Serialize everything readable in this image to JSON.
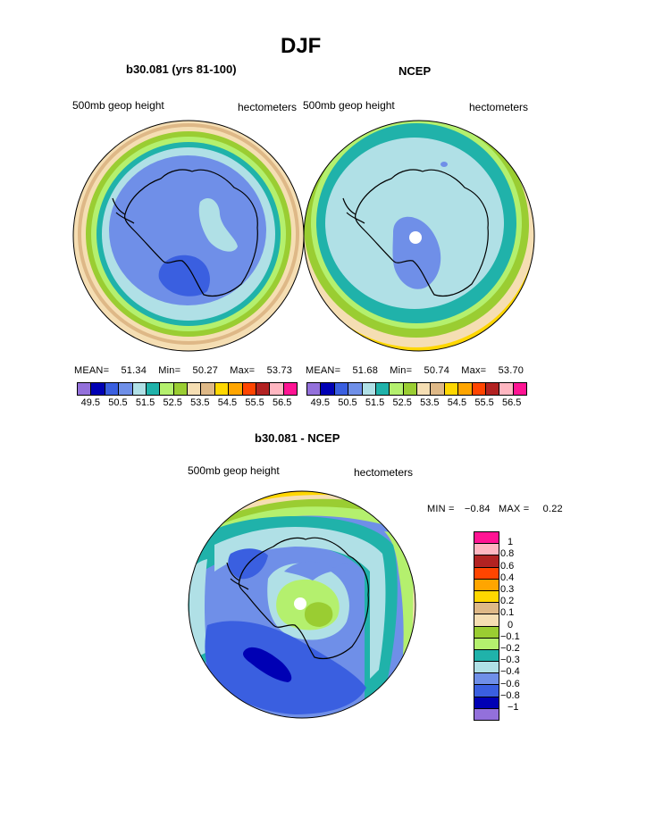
{
  "page": {
    "title": "DJF"
  },
  "palette": {
    "h1": [
      "#9370db",
      "#0000b4",
      "#3a5fe0",
      "#6f8fe8",
      "#b0e0e6",
      "#20b2aa",
      "#b4f06e",
      "#9acd32",
      "#f5deb3",
      "#deb887",
      "#ffd700",
      "#ffa500",
      "#ff4500",
      "#b22222",
      "#ffb6c1",
      "#ff1493"
    ],
    "diff": [
      "#ff1493",
      "#ffb6c1",
      "#b22222",
      "#ff4500",
      "#ffa500",
      "#ffd700",
      "#deb887",
      "#f5deb3",
      "#9acd32",
      "#b4f06e",
      "#20b2aa",
      "#b0e0e6",
      "#6f8fe8",
      "#3a5fe0",
      "#0000b4",
      "#9370db"
    ]
  },
  "chart_data": [
    {
      "type": "heatmap",
      "title": "b30.081 (yrs 81-100)",
      "left_label": "500mb geop height",
      "right_label": "hectometers",
      "stats": {
        "mean_label": "MEAN=",
        "mean": "51.34",
        "min_label": "Min=",
        "min": "50.27",
        "max_label": "Max=",
        "max": "53.73"
      },
      "levels": [
        "49.5",
        "50.5",
        "51.5",
        "52.5",
        "53.5",
        "54.5",
        "55.5",
        "56.5"
      ]
    },
    {
      "type": "heatmap",
      "title": "NCEP",
      "left_label": "500mb geop height",
      "right_label": "hectometers",
      "stats": {
        "mean_label": "MEAN=",
        "mean": "51.68",
        "min_label": "Min=",
        "min": "50.74",
        "max_label": "Max=",
        "max": "53.70"
      },
      "levels": [
        "49.5",
        "50.5",
        "51.5",
        "52.5",
        "53.5",
        "54.5",
        "55.5",
        "56.5"
      ]
    },
    {
      "type": "heatmap",
      "title": "b30.081 - NCEP",
      "left_label": "500mb geop height",
      "right_label": "hectometers",
      "stats": {
        "min_label": "MIN =",
        "min": "−0.84",
        "max_label": "MAX =",
        "max": "0.22"
      },
      "levels": [
        "1",
        "0.8",
        "0.6",
        "0.4",
        "0.3",
        "0.2",
        "0.1",
        "0",
        "−0.1",
        "−0.2",
        "−0.3",
        "−0.4",
        "−0.6",
        "−0.8",
        "−1"
      ]
    }
  ]
}
